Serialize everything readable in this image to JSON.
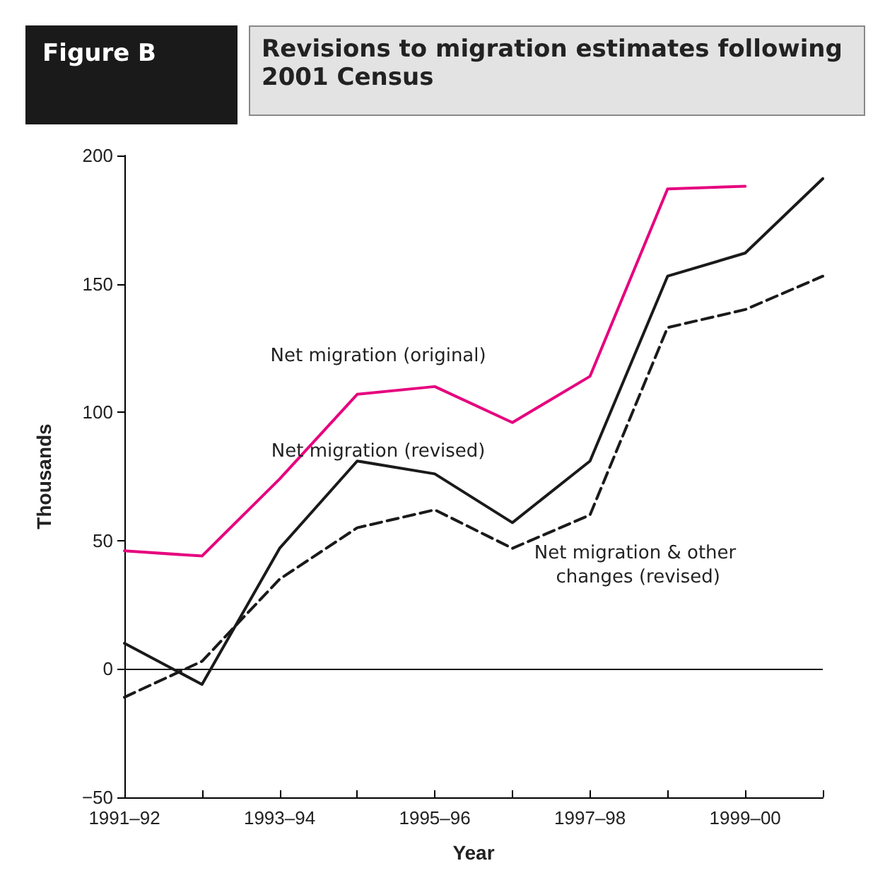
{
  "chart_data": {
    "type": "line",
    "title": "Revisions to migration estimates following 2001 Census",
    "subtitle": "Figure B",
    "xlabel": "Year",
    "ylabel": "Thousands",
    "categories": [
      "1991–92",
      null,
      "1993–94",
      null,
      "1995–96",
      null,
      "1997–98",
      null,
      "1999–00",
      null
    ],
    "series": [
      {
        "name": "Net migration (original)",
        "color": "#e6007e",
        "line_style": "solid",
        "values": [
          46,
          44,
          74,
          107,
          110,
          96,
          114,
          187,
          188,
          null
        ]
      },
      {
        "name": "Net migration (revised)",
        "color": "#1a1a1a",
        "line_style": "solid",
        "values": [
          10,
          -6,
          47,
          81,
          76,
          57,
          81,
          153,
          162,
          191
        ]
      },
      {
        "name": "Net migration & other changes (revised)",
        "color": "#1a1a1a",
        "line_style": "dashed",
        "values": [
          -11,
          3,
          35,
          55,
          62,
          47,
          60,
          133,
          140,
          153
        ]
      }
    ],
    "ylim": [
      -50,
      200
    ],
    "yticks": [
      -50,
      0,
      50,
      100,
      150,
      200
    ],
    "grid": false,
    "legend": false,
    "marker": "none",
    "ref_lines": [
      {
        "axis": "y",
        "value": 0,
        "color": "#1a1a1a"
      }
    ]
  }
}
